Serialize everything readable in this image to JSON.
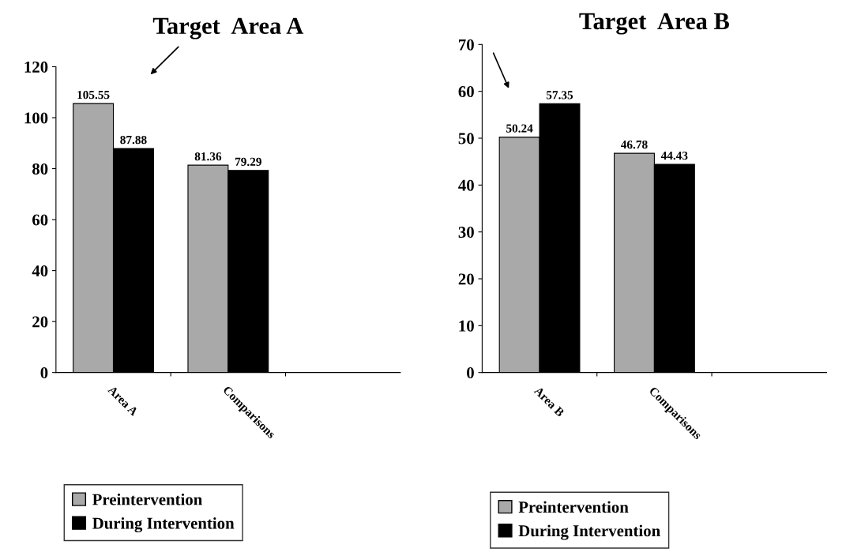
{
  "chart_data": [
    {
      "type": "bar",
      "title": "Target  Area A",
      "categories": [
        "Area A",
        "Comparisons",
        null
      ],
      "series": [
        {
          "name": "Preintervention",
          "color": "#a9a9a9",
          "values": [
            105.55,
            81.36,
            null
          ]
        },
        {
          "name": "During Intervention",
          "color": "#000000",
          "values": [
            87.88,
            79.29,
            null
          ]
        }
      ],
      "ylim": [
        0,
        120
      ],
      "yticks": [
        0,
        20,
        40,
        60,
        80,
        100,
        120
      ],
      "data_labels": true,
      "legend": "bottom",
      "grid": false
    },
    {
      "type": "bar",
      "title": "Target  Area B",
      "categories": [
        "Area B",
        "Comparisons",
        null
      ],
      "series": [
        {
          "name": "Preintervention",
          "color": "#a9a9a9",
          "values": [
            50.24,
            46.78,
            null
          ]
        },
        {
          "name": "During Intervention",
          "color": "#000000",
          "values": [
            57.35,
            44.43,
            null
          ]
        }
      ],
      "ylim": [
        0,
        70
      ],
      "yticks": [
        0,
        10,
        20,
        30,
        40,
        50,
        60,
        70
      ],
      "data_labels": true,
      "legend": "bottom",
      "grid": false
    }
  ]
}
